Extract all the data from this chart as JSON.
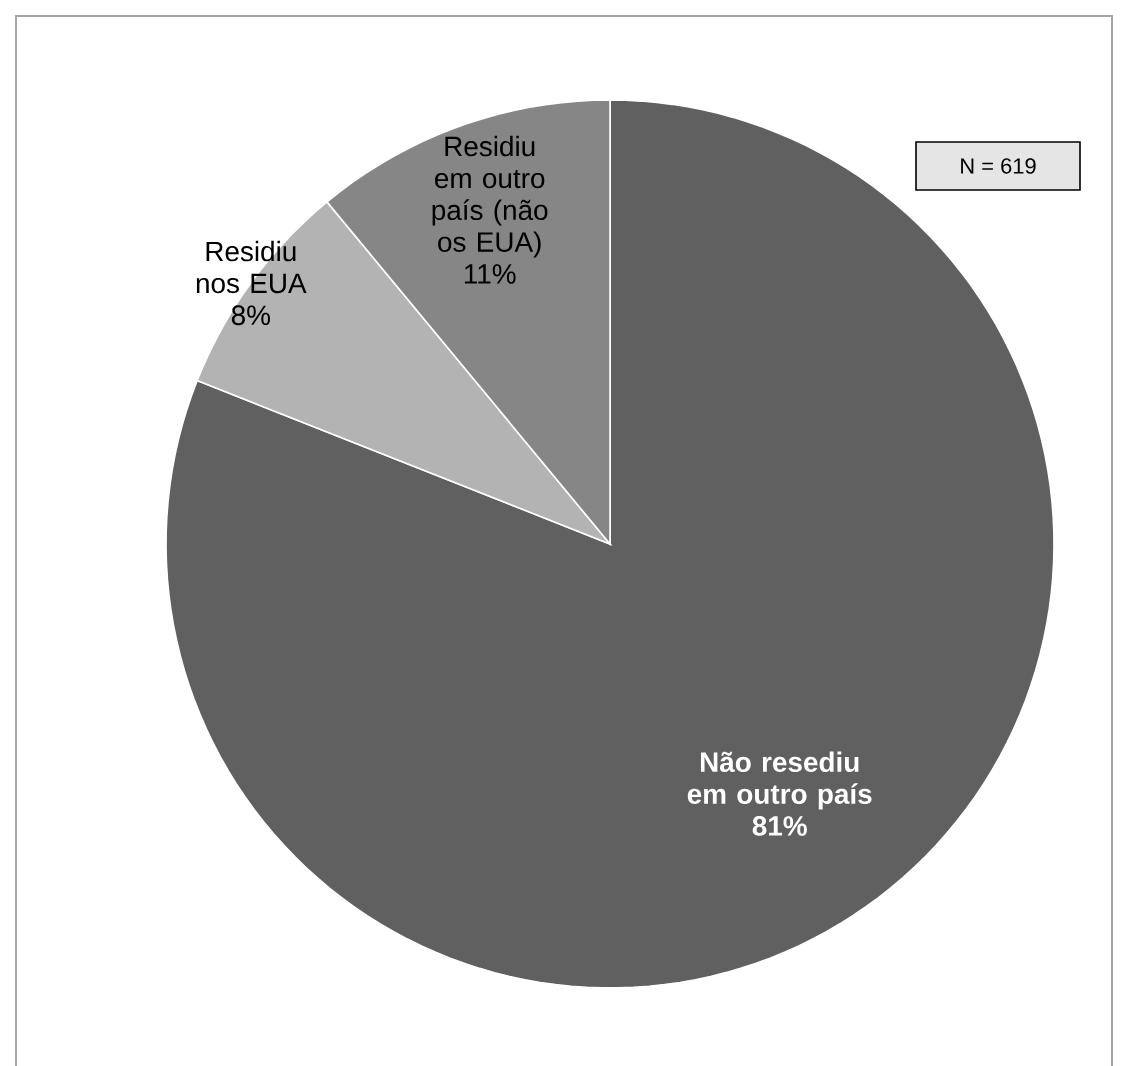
{
  "chart_data": {
    "type": "pie",
    "categories": [
      "Não resediu em outro país",
      "Residiu nos EUA",
      "Residiu em outro país (não os EUA)"
    ],
    "values": [
      81,
      8,
      11
    ],
    "value_labels": [
      "81%",
      "8%",
      "11%"
    ],
    "colors": [
      "#606060",
      "#b3b3b3",
      "#868686"
    ],
    "annotations": [
      "N = 619"
    ]
  }
}
